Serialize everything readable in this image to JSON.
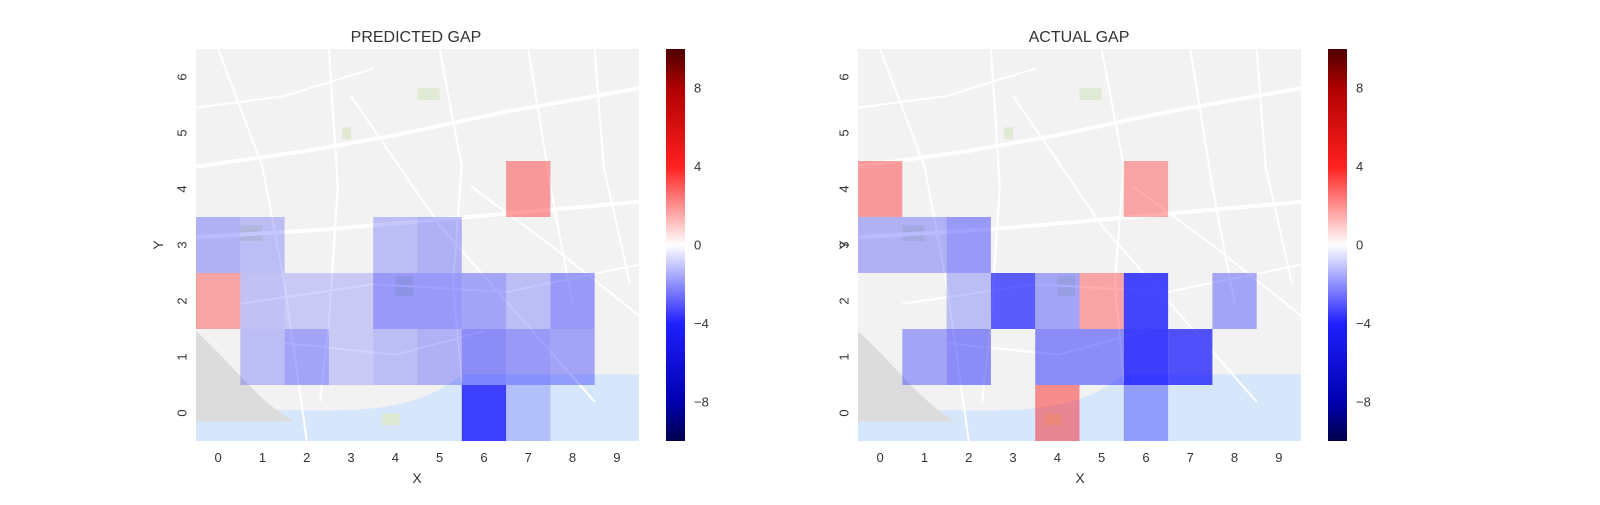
{
  "colors": {
    "negative": "#0000ff",
    "positive": "#ff0000",
    "neutral": "#ffffff",
    "map_background": "#f2f2f2",
    "water": "#d6e6fb"
  },
  "chart_data": [
    {
      "type": "heatmap",
      "title": "PREDICTED GAP",
      "xlabel": "X",
      "ylabel": "Y",
      "x_ticks": [
        "0",
        "1",
        "2",
        "3",
        "4",
        "5",
        "6",
        "7",
        "8",
        "9"
      ],
      "y_ticks": [
        "0",
        "1",
        "2",
        "3",
        "4",
        "5",
        "6"
      ],
      "xlim": [
        0,
        10
      ],
      "ylim": [
        0,
        7
      ],
      "background": "street-map",
      "colorbar": {
        "vmin": -10,
        "vmax": 10,
        "ticks": [
          "8",
          "4",
          "0",
          "−4",
          "−8"
        ],
        "tick_values": [
          8,
          4,
          0,
          -4,
          -8
        ],
        "cmap": "seismic"
      },
      "cells": [
        {
          "x": 0,
          "y": 3,
          "value": -1.5
        },
        {
          "x": 1,
          "y": 3,
          "value": -1.0
        },
        {
          "x": 4,
          "y": 3,
          "value": -1.0
        },
        {
          "x": 5,
          "y": 3,
          "value": -1.5
        },
        {
          "x": 0,
          "y": 2,
          "value": 2.0
        },
        {
          "x": 1,
          "y": 2,
          "value": -0.8
        },
        {
          "x": 2,
          "y": 2,
          "value": -0.5
        },
        {
          "x": 3,
          "y": 2,
          "value": -0.5
        },
        {
          "x": 4,
          "y": 2,
          "value": -2.5
        },
        {
          "x": 5,
          "y": 2,
          "value": -2.5
        },
        {
          "x": 6,
          "y": 2,
          "value": -2.0
        },
        {
          "x": 7,
          "y": 2,
          "value": -1.0
        },
        {
          "x": 8,
          "y": 2,
          "value": -2.5
        },
        {
          "x": 1,
          "y": 1,
          "value": -1.0
        },
        {
          "x": 2,
          "y": 1,
          "value": -2.0
        },
        {
          "x": 3,
          "y": 1,
          "value": -0.5
        },
        {
          "x": 4,
          "y": 1,
          "value": -1.0
        },
        {
          "x": 5,
          "y": 1,
          "value": -1.5
        },
        {
          "x": 6,
          "y": 1,
          "value": -3.0
        },
        {
          "x": 7,
          "y": 1,
          "value": -2.5
        },
        {
          "x": 8,
          "y": 1,
          "value": -2.0
        },
        {
          "x": 6,
          "y": 0,
          "value": -6.0
        },
        {
          "x": 7,
          "y": 0,
          "value": -0.5
        },
        {
          "x": 7,
          "y": 4,
          "value": 2.5
        }
      ]
    },
    {
      "type": "heatmap",
      "title": "ACTUAL GAP",
      "xlabel": "X",
      "ylabel": "Y",
      "x_ticks": [
        "0",
        "1",
        "2",
        "3",
        "4",
        "5",
        "6",
        "7",
        "8",
        "9"
      ],
      "y_ticks": [
        "0",
        "1",
        "2",
        "3",
        "4",
        "5",
        "6"
      ],
      "xlim": [
        0,
        10
      ],
      "ylim": [
        0,
        7
      ],
      "background": "street-map",
      "colorbar": {
        "vmin": -10,
        "vmax": 10,
        "ticks": [
          "8",
          "4",
          "0",
          "−4",
          "−8"
        ],
        "tick_values": [
          8,
          4,
          0,
          -4,
          -8
        ],
        "cmap": "seismic"
      },
      "cells": [
        {
          "x": 0,
          "y": 4,
          "value": 2.5
        },
        {
          "x": 6,
          "y": 4,
          "value": 2.0
        },
        {
          "x": 0,
          "y": 3,
          "value": -1.5
        },
        {
          "x": 1,
          "y": 3,
          "value": -1.5
        },
        {
          "x": 2,
          "y": 3,
          "value": -2.5
        },
        {
          "x": 2,
          "y": 2,
          "value": -1.0
        },
        {
          "x": 3,
          "y": 2,
          "value": -5.0
        },
        {
          "x": 4,
          "y": 2,
          "value": -2.0
        },
        {
          "x": 5,
          "y": 2,
          "value": 2.0
        },
        {
          "x": 6,
          "y": 2,
          "value": -6.0
        },
        {
          "x": 8,
          "y": 2,
          "value": -2.0
        },
        {
          "x": 1,
          "y": 1,
          "value": -2.0
        },
        {
          "x": 2,
          "y": 1,
          "value": -3.0
        },
        {
          "x": 4,
          "y": 1,
          "value": -3.0
        },
        {
          "x": 5,
          "y": 1,
          "value": -3.0
        },
        {
          "x": 6,
          "y": 1,
          "value": -7.0
        },
        {
          "x": 7,
          "y": 1,
          "value": -5.5
        },
        {
          "x": 4,
          "y": 0,
          "value": 3.0
        },
        {
          "x": 6,
          "y": 0,
          "value": -2.0
        }
      ]
    }
  ]
}
